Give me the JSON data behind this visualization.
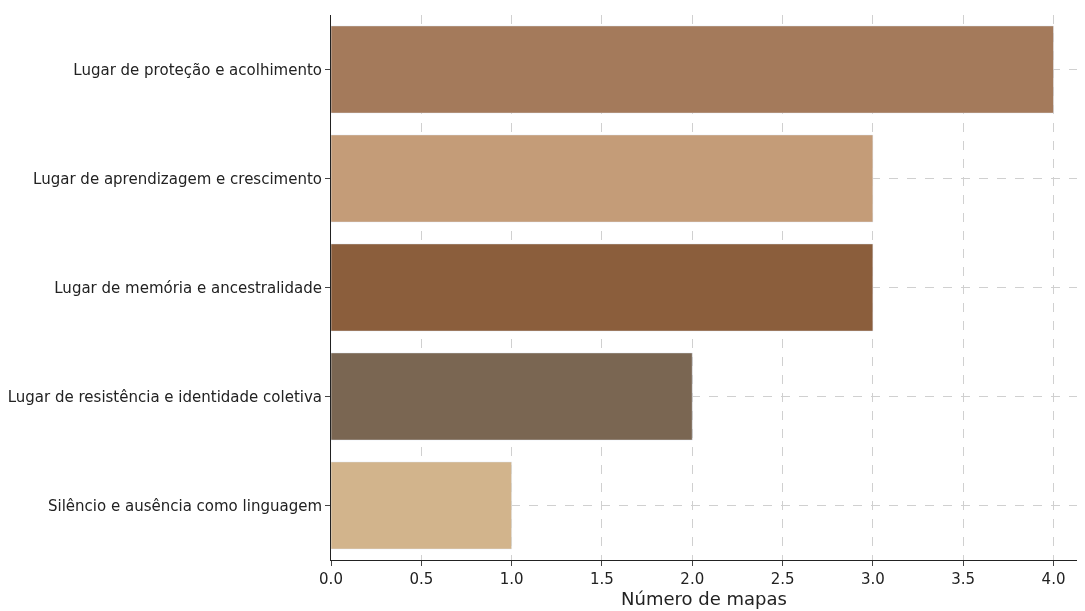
{
  "chart_data": {
    "type": "bar",
    "orientation": "horizontal",
    "xlabel": "Número de mapas",
    "categories": [
      "Lugar de proteção e acolhimento",
      "Lugar de aprendizagem e crescimento",
      "Lugar de memória e ancestralidade",
      "Lugar de resistência e identidade coletiva",
      "Silêncio e ausência como linguagem"
    ],
    "values": [
      4,
      3,
      3,
      2,
      1
    ],
    "colors": [
      "#a47a5b",
      "#c49c78",
      "#8b5e3c",
      "#7a6652",
      "#d2b48c"
    ],
    "xlim": [
      0,
      4.13
    ],
    "xticks": [
      {
        "value": 0,
        "label": "0.0"
      },
      {
        "value": 0.5,
        "label": "0.5"
      },
      {
        "value": 1,
        "label": "1.0"
      },
      {
        "value": 1.5,
        "label": "1.5"
      },
      {
        "value": 2,
        "label": "2.0"
      },
      {
        "value": 2.5,
        "label": "2.5"
      },
      {
        "value": 3,
        "label": "3.0"
      },
      {
        "value": 3.5,
        "label": "3.5"
      },
      {
        "value": 4,
        "label": "4.0"
      }
    ],
    "grid": true
  }
}
